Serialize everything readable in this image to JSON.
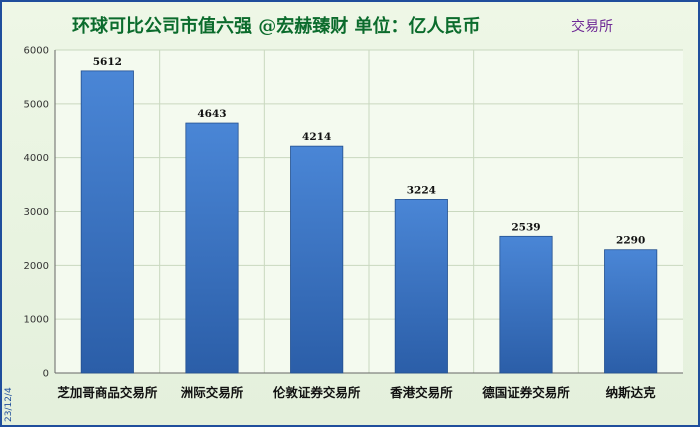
{
  "chart_data": {
    "type": "bar",
    "title": "环球可比公司市值六强 @宏赫臻财    单位：亿人民币",
    "legend": [
      "交易所"
    ],
    "date_label": "23/12/4",
    "categories": [
      "芝加哥商品交易所",
      "洲际交易所",
      "伦敦证券交易所",
      "香港交易所",
      "德国证券交易所",
      "纳斯达克"
    ],
    "series": [
      {
        "name": "交易所",
        "values": [
          5612,
          4643,
          4214,
          3224,
          2539,
          2290
        ]
      }
    ],
    "ylim": [
      0,
      6000
    ],
    "yticks": [
      0,
      1000,
      2000,
      3000,
      4000,
      5000,
      6000
    ],
    "grid": true,
    "legend_position": "top-right",
    "colors": {
      "bar": "#3d78c8",
      "bar_dark": "#2b5ea8",
      "title": "#0b6b2c",
      "legend": "#6f2a96",
      "grid": "#c9d8bf",
      "axis": "#666666"
    }
  }
}
